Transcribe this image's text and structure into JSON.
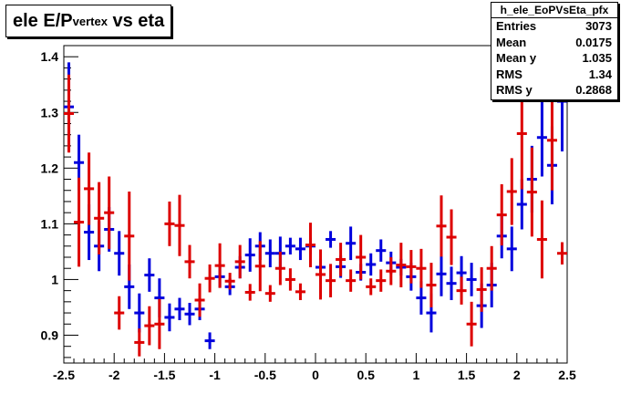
{
  "title": {
    "main": "ele E/P",
    "sub": "vertex",
    "suffix": " vs eta"
  },
  "stats": {
    "name": "h_ele_EoPVsEta_pfx",
    "rows": [
      {
        "label": "Entries",
        "value": "3073"
      },
      {
        "label": "Mean",
        "value": "0.0175"
      },
      {
        "label": "Mean y",
        "value": "1.035"
      },
      {
        "label": "RMS",
        "value": "1.34"
      },
      {
        "label": "RMS y",
        "value": "0.2868"
      }
    ]
  },
  "colors": {
    "series_blue": "#0000dd",
    "series_red": "#dd0000",
    "axis": "#000000"
  },
  "chart_data": {
    "type": "scatter",
    "title": "ele E/Pvertex vs eta",
    "xlabel": "",
    "ylabel": "",
    "xlim": [
      -2.5,
      2.5
    ],
    "ylim": [
      0.85,
      1.42
    ],
    "xticks": [
      -2.5,
      -2,
      -1.5,
      -1,
      -0.5,
      0,
      0.5,
      1,
      1.5,
      2,
      2.5
    ],
    "yticks": [
      0.9,
      1,
      1.1,
      1.2,
      1.3,
      1.4
    ],
    "grid": false,
    "series": [
      {
        "color": "#0000dd",
        "xerr": 0.05,
        "points": [
          {
            "x": -2.45,
            "y": 1.31,
            "err": 0.08
          },
          {
            "x": -2.35,
            "y": 1.21,
            "err": 0.05
          },
          {
            "x": -2.25,
            "y": 1.085,
            "err": 0.05
          },
          {
            "x": -2.15,
            "y": 1.06,
            "err": 0.045
          },
          {
            "x": -2.05,
            "y": 1.09,
            "err": 0.04
          },
          {
            "x": -1.95,
            "y": 1.047,
            "err": 0.04
          },
          {
            "x": -1.85,
            "y": 0.987,
            "err": 0.04
          },
          {
            "x": -1.75,
            "y": 0.94,
            "err": 0.035
          },
          {
            "x": -1.65,
            "y": 1.008,
            "err": 0.03
          },
          {
            "x": -1.55,
            "y": 0.967,
            "err": 0.035
          },
          {
            "x": -1.45,
            "y": 0.932,
            "err": 0.025
          },
          {
            "x": -1.35,
            "y": 0.947,
            "err": 0.02
          },
          {
            "x": -1.25,
            "y": 0.938,
            "err": 0.02
          },
          {
            "x": -1.15,
            "y": 0.947,
            "err": 0.02
          },
          {
            "x": -1.05,
            "y": 0.89,
            "err": 0.015
          },
          {
            "x": -0.95,
            "y": 1.005,
            "err": 0.02
          },
          {
            "x": -0.85,
            "y": 0.987,
            "err": 0.015
          },
          {
            "x": -0.75,
            "y": 1.022,
            "err": 0.02
          },
          {
            "x": -0.65,
            "y": 1.044,
            "err": 0.03
          },
          {
            "x": -0.55,
            "y": 1.06,
            "err": 0.025
          },
          {
            "x": -0.45,
            "y": 1.047,
            "err": 0.025
          },
          {
            "x": -0.35,
            "y": 1.047,
            "err": 0.03
          },
          {
            "x": -0.25,
            "y": 1.06,
            "err": 0.015
          },
          {
            "x": -0.15,
            "y": 1.055,
            "err": 0.02
          },
          {
            "x": -0.05,
            "y": 1.06,
            "err": 0.015
          },
          {
            "x": 0.05,
            "y": 1.022,
            "err": 0.015
          },
          {
            "x": 0.15,
            "y": 1.072,
            "err": 0.015
          },
          {
            "x": 0.25,
            "y": 1.023,
            "err": 0.02
          },
          {
            "x": 0.35,
            "y": 1.065,
            "err": 0.03
          },
          {
            "x": 0.45,
            "y": 1.013,
            "err": 0.015
          },
          {
            "x": 0.55,
            "y": 1.027,
            "err": 0.02
          },
          {
            "x": 0.65,
            "y": 1.052,
            "err": 0.02
          },
          {
            "x": 0.75,
            "y": 1.03,
            "err": 0.02
          },
          {
            "x": 0.85,
            "y": 1.022,
            "err": 0.015
          },
          {
            "x": 0.95,
            "y": 1.005,
            "err": 0.025
          },
          {
            "x": 1.05,
            "y": 0.967,
            "err": 0.03
          },
          {
            "x": 1.15,
            "y": 0.94,
            "err": 0.035
          },
          {
            "x": 1.25,
            "y": 1.01,
            "err": 0.04
          },
          {
            "x": 1.35,
            "y": 0.993,
            "err": 0.03
          },
          {
            "x": 1.45,
            "y": 1.012,
            "err": 0.03
          },
          {
            "x": 1.55,
            "y": 1.0,
            "err": 0.03
          },
          {
            "x": 1.65,
            "y": 0.953,
            "err": 0.04
          },
          {
            "x": 1.75,
            "y": 0.99,
            "err": 0.04
          },
          {
            "x": 1.85,
            "y": 1.078,
            "err": 0.04
          },
          {
            "x": 1.95,
            "y": 1.055,
            "err": 0.04
          },
          {
            "x": 2.05,
            "y": 1.135,
            "err": 0.045
          },
          {
            "x": 2.15,
            "y": 1.18,
            "err": 0.06
          },
          {
            "x": 2.25,
            "y": 1.255,
            "err": 0.07
          },
          {
            "x": 2.35,
            "y": 1.205,
            "err": 0.07
          },
          {
            "x": 2.45,
            "y": 1.32,
            "err": 0.09
          }
        ]
      },
      {
        "color": "#dd0000",
        "xerr": 0.05,
        "points": [
          {
            "x": -2.45,
            "y": 1.298,
            "err": 0.07
          },
          {
            "x": -2.35,
            "y": 1.103,
            "err": 0.08
          },
          {
            "x": -2.25,
            "y": 1.163,
            "err": 0.065
          },
          {
            "x": -2.15,
            "y": 1.11,
            "err": 0.065
          },
          {
            "x": -2.05,
            "y": 1.12,
            "err": 0.065
          },
          {
            "x": -1.95,
            "y": 0.94,
            "err": 0.03
          },
          {
            "x": -1.85,
            "y": 1.078,
            "err": 0.08
          },
          {
            "x": -1.75,
            "y": 0.887,
            "err": 0.025
          },
          {
            "x": -1.65,
            "y": 0.917,
            "err": 0.035
          },
          {
            "x": -1.55,
            "y": 0.92,
            "err": 0.045
          },
          {
            "x": -1.45,
            "y": 1.1,
            "err": 0.04
          },
          {
            "x": -1.35,
            "y": 1.097,
            "err": 0.055
          },
          {
            "x": -1.25,
            "y": 1.032,
            "err": 0.03
          },
          {
            "x": -1.15,
            "y": 0.963,
            "err": 0.03
          },
          {
            "x": -1.05,
            "y": 1.002,
            "err": 0.025
          },
          {
            "x": -0.95,
            "y": 1.025,
            "err": 0.04
          },
          {
            "x": -0.85,
            "y": 0.997,
            "err": 0.015
          },
          {
            "x": -0.75,
            "y": 1.032,
            "err": 0.03
          },
          {
            "x": -0.65,
            "y": 0.977,
            "err": 0.015
          },
          {
            "x": -0.55,
            "y": 1.024,
            "err": 0.045
          },
          {
            "x": -0.45,
            "y": 0.975,
            "err": 0.015
          },
          {
            "x": -0.35,
            "y": 1.02,
            "err": 0.03
          },
          {
            "x": -0.25,
            "y": 1.0,
            "err": 0.02
          },
          {
            "x": -0.15,
            "y": 0.978,
            "err": 0.015
          },
          {
            "x": -0.05,
            "y": 1.062,
            "err": 0.04
          },
          {
            "x": 0.05,
            "y": 1.009,
            "err": 0.045
          },
          {
            "x": 0.15,
            "y": 0.998,
            "err": 0.03
          },
          {
            "x": 0.25,
            "y": 1.036,
            "err": 0.03
          },
          {
            "x": 0.35,
            "y": 0.998,
            "err": 0.02
          },
          {
            "x": 0.45,
            "y": 1.04,
            "err": 0.04
          },
          {
            "x": 0.55,
            "y": 0.987,
            "err": 0.015
          },
          {
            "x": 0.65,
            "y": 0.998,
            "err": 0.02
          },
          {
            "x": 0.75,
            "y": 1.015,
            "err": 0.025
          },
          {
            "x": 0.85,
            "y": 1.026,
            "err": 0.04
          },
          {
            "x": 0.95,
            "y": 1.023,
            "err": 0.03
          },
          {
            "x": 1.05,
            "y": 1.02,
            "err": 0.035
          },
          {
            "x": 1.15,
            "y": 0.99,
            "err": 0.04
          },
          {
            "x": 1.25,
            "y": 1.096,
            "err": 0.055
          },
          {
            "x": 1.35,
            "y": 1.076,
            "err": 0.05
          },
          {
            "x": 1.45,
            "y": 0.98,
            "err": 0.025
          },
          {
            "x": 1.55,
            "y": 0.92,
            "err": 0.04
          },
          {
            "x": 1.65,
            "y": 0.982,
            "err": 0.04
          },
          {
            "x": 1.75,
            "y": 1.02,
            "err": 0.04
          },
          {
            "x": 1.85,
            "y": 1.116,
            "err": 0.055
          },
          {
            "x": 1.95,
            "y": 1.158,
            "err": 0.06
          },
          {
            "x": 2.05,
            "y": 1.262,
            "err": 0.1
          },
          {
            "x": 2.15,
            "y": 1.157,
            "err": 0.08
          },
          {
            "x": 2.25,
            "y": 1.072,
            "err": 0.07
          },
          {
            "x": 2.35,
            "y": 1.25,
            "err": 0.09
          },
          {
            "x": 2.45,
            "y": 1.047,
            "err": 0.02
          }
        ]
      }
    ]
  }
}
